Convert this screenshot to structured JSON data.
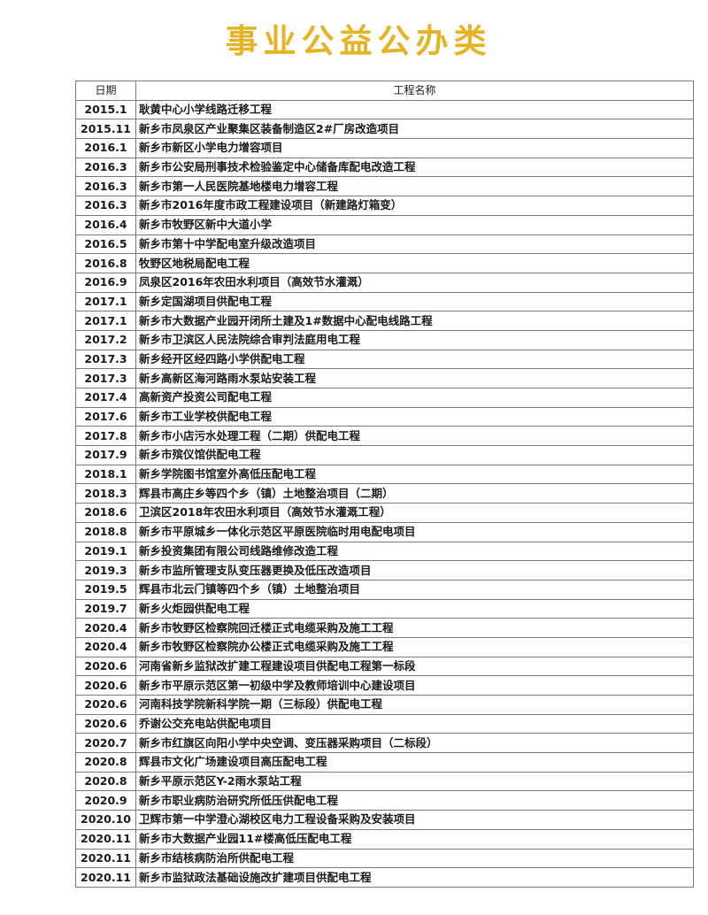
{
  "title": "事业公益公办类",
  "title_color": "#e5b324",
  "table": {
    "headers": [
      "日期",
      "工程名称"
    ],
    "rows": [
      [
        "2015.1",
        "耿黄中心小学线路迁移工程"
      ],
      [
        "2015.11",
        "新乡市凤泉区产业聚集区装备制造区2#厂房改造项目"
      ],
      [
        "2016.1",
        "新乡市新区小学电力增容项目"
      ],
      [
        "2016.3",
        "新乡市公安局刑事技术检验鉴定中心储备库配电改造工程"
      ],
      [
        "2016.3",
        "新乡市第一人民医院基地楼电力增容工程"
      ],
      [
        "2016.3",
        "新乡市2016年度市政工程建设项目（新建路灯箱变）"
      ],
      [
        "2016.4",
        "新乡市牧野区新中大道小学"
      ],
      [
        "2016.5",
        "新乡市第十中学配电室升级改造项目"
      ],
      [
        "2016.8",
        "牧野区地税局配电工程"
      ],
      [
        "2016.9",
        "凤泉区2016年农田水利项目（高效节水灌溉）"
      ],
      [
        "2017.1",
        "新乡定国湖项目供配电工程"
      ],
      [
        "2017.1",
        "新乡市大数据产业园开闭所土建及1#数据中心配电线路工程"
      ],
      [
        "2017.2",
        "新乡市卫滨区人民法院综合审判法庭用电工程"
      ],
      [
        "2017.3",
        "新乡经开区经四路小学供配电工程"
      ],
      [
        "2017.3",
        "新乡高新区海河路雨水泵站安装工程"
      ],
      [
        "2017.4",
        "高新资产投资公司配电工程"
      ],
      [
        "2017.6",
        "新乡市工业学校供配电工程"
      ],
      [
        "2017.8",
        "新乡市小店污水处理工程（二期）供配电工程"
      ],
      [
        "2017.9",
        "新乡市殡仪馆供配电工程"
      ],
      [
        "2018.1",
        "新乡学院图书馆室外高低压配电工程"
      ],
      [
        "2018.3",
        "辉县市高庄乡等四个乡（镇）土地整治项目（二期）"
      ],
      [
        "2018.6",
        "卫滨区2018年农田水利项目（高效节水灌溉工程）"
      ],
      [
        "2018.8",
        "新乡市平原城乡一体化示范区平原医院临时用电配电项目"
      ],
      [
        "2019.1",
        "新乡投资集团有限公司线路维修改造工程"
      ],
      [
        "2019.3",
        "新乡市监所管理支队变压器更换及低压改造项目"
      ],
      [
        "2019.5",
        "辉县市北云门镇等四个乡（镇）土地整治项目"
      ],
      [
        "2019.7",
        "新乡火炬园供配电工程"
      ],
      [
        "2020.4",
        "新乡市牧野区检察院回迁楼正式电缆采购及施工工程"
      ],
      [
        "2020.4",
        "新乡市牧野区检察院办公楼正式电缆采购及施工工程"
      ],
      [
        "2020.6",
        "河南省新乡监狱改扩建工程建设项目供配电工程第一标段"
      ],
      [
        "2020.6",
        "新乡市平原示范区第一初级中学及教师培训中心建设项目"
      ],
      [
        "2020.6",
        "河南科技学院新科学院一期（三标段）供配电工程"
      ],
      [
        "2020.6",
        "乔谢公交充电站供配电项目"
      ],
      [
        "2020.7",
        "新乡市红旗区向阳小学中央空调、变压器采购项目（二标段）"
      ],
      [
        "2020.8",
        "辉县市文化广场建设项目高压配电工程"
      ],
      [
        "2020.8",
        "新乡平原示范区Y-2雨水泵站工程"
      ],
      [
        "2020.9",
        "新乡市职业病防治研究所低压供配电工程"
      ],
      [
        "2020.10",
        "卫辉市第一中学澄心湖校区电力工程设备采购及安装项目"
      ],
      [
        "2020.11",
        "新乡市大数据产业园11#楼高低压配电工程"
      ],
      [
        "2020.11",
        "新乡市结核病防治所供配电工程"
      ],
      [
        "2020.11",
        "新乡市监狱政法基础设施改扩建项目供配电工程"
      ]
    ]
  }
}
